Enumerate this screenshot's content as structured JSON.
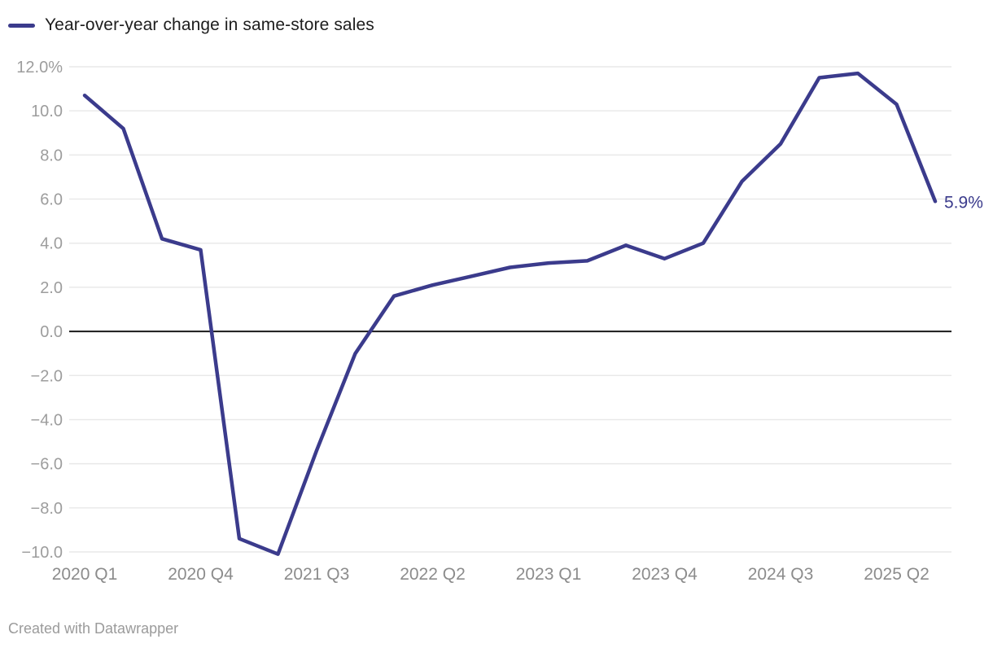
{
  "legend": {
    "label": "Year-over-year change in same-store sales"
  },
  "footer": {
    "text": "Created with Datawrapper"
  },
  "chart_data": {
    "type": "line",
    "title": "Year-over-year change in same-store sales",
    "xlabel": "",
    "ylabel": "",
    "unit": "%",
    "grid": true,
    "legend_position": "top-left",
    "ylim": [
      -10,
      12
    ],
    "x": [
      "2020 Q1",
      "2020 Q2",
      "2020 Q3",
      "2020 Q4",
      "2021 Q1",
      "2021 Q2",
      "2021 Q3",
      "2021 Q4",
      "2022 Q1",
      "2022 Q2",
      "2022 Q3",
      "2022 Q4",
      "2023 Q1",
      "2023 Q2",
      "2023 Q3",
      "2023 Q4",
      "2024 Q1",
      "2024 Q2",
      "2024 Q3",
      "2024 Q4",
      "2025 Q1",
      "2025 Q2",
      "2025 Q3"
    ],
    "series": [
      {
        "name": "Year-over-year change in same-store sales",
        "values": [
          10.7,
          9.2,
          4.2,
          3.7,
          -9.4,
          -10.1,
          -5.4,
          -1.0,
          1.6,
          2.1,
          2.5,
          2.9,
          3.1,
          3.2,
          3.9,
          3.3,
          4.0,
          6.8,
          8.5,
          11.5,
          11.7,
          10.3,
          5.9
        ]
      }
    ],
    "y_ticks": [
      {
        "v": 12,
        "label": "12.0%"
      },
      {
        "v": 10,
        "label": "10.0"
      },
      {
        "v": 8,
        "label": "8.0"
      },
      {
        "v": 6,
        "label": "6.0"
      },
      {
        "v": 4,
        "label": "4.0"
      },
      {
        "v": 2,
        "label": "2.0"
      },
      {
        "v": 0,
        "label": "0.0"
      },
      {
        "v": -2,
        "label": "−2.0"
      },
      {
        "v": -4,
        "label": "−4.0"
      },
      {
        "v": -6,
        "label": "−6.0"
      },
      {
        "v": -8,
        "label": "−8.0"
      },
      {
        "v": -10,
        "label": "−10.0"
      }
    ],
    "x_ticks": [
      {
        "i": 0,
        "label": "2020 Q1"
      },
      {
        "i": 3,
        "label": "2020 Q4"
      },
      {
        "i": 6,
        "label": "2021 Q3"
      },
      {
        "i": 9,
        "label": "2022 Q2"
      },
      {
        "i": 12,
        "label": "2023 Q1"
      },
      {
        "i": 15,
        "label": "2023 Q4"
      },
      {
        "i": 18,
        "label": "2024 Q3"
      },
      {
        "i": 21,
        "label": "2025 Q2"
      }
    ],
    "end_label": "5.9%",
    "colors": {
      "line": "#3b3b8c",
      "zero_line": "#1a1a1a",
      "grid": "#e9e9e9",
      "y_axis_text": "#9d9d9d",
      "x_axis_text": "#8c8c8c",
      "legend_text": "#1d1d1d",
      "end_label": "#3b3b8c",
      "footer_text": "#9b9b9b",
      "background": "#ffffff"
    }
  }
}
